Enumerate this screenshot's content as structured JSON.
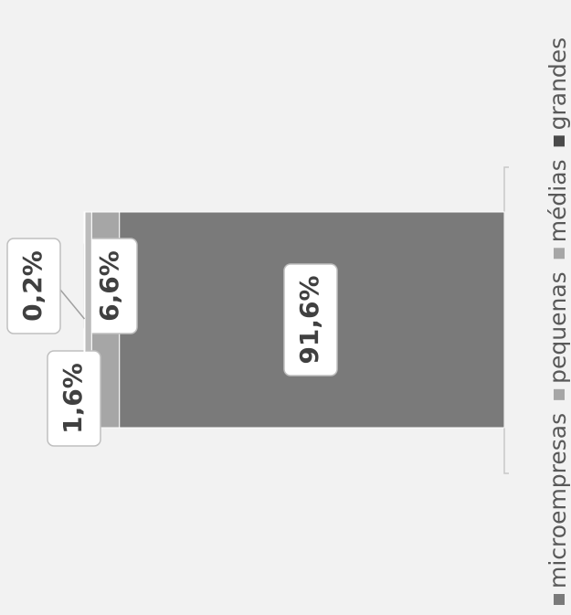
{
  "chart_data": {
    "type": "bar",
    "stacked": true,
    "series": [
      {
        "name": "microempresas",
        "color": "#7a7a7a",
        "values": [
          91.6
        ],
        "value_labels": [
          "91,6%"
        ]
      },
      {
        "name": "pequenas",
        "color": "#a6a6a6",
        "values": [
          6.6
        ],
        "value_labels": [
          "6,6%"
        ]
      },
      {
        "name": "médias",
        "color": "#bcbcbc",
        "values": [
          1.6
        ],
        "value_labels": [
          "1,6%"
        ]
      },
      {
        "name": "grandes",
        "color": "#4a4a4a",
        "values": [
          0.2
        ],
        "value_labels": [
          "0,2%"
        ]
      }
    ],
    "xlim": [
      0,
      100
    ]
  }
}
